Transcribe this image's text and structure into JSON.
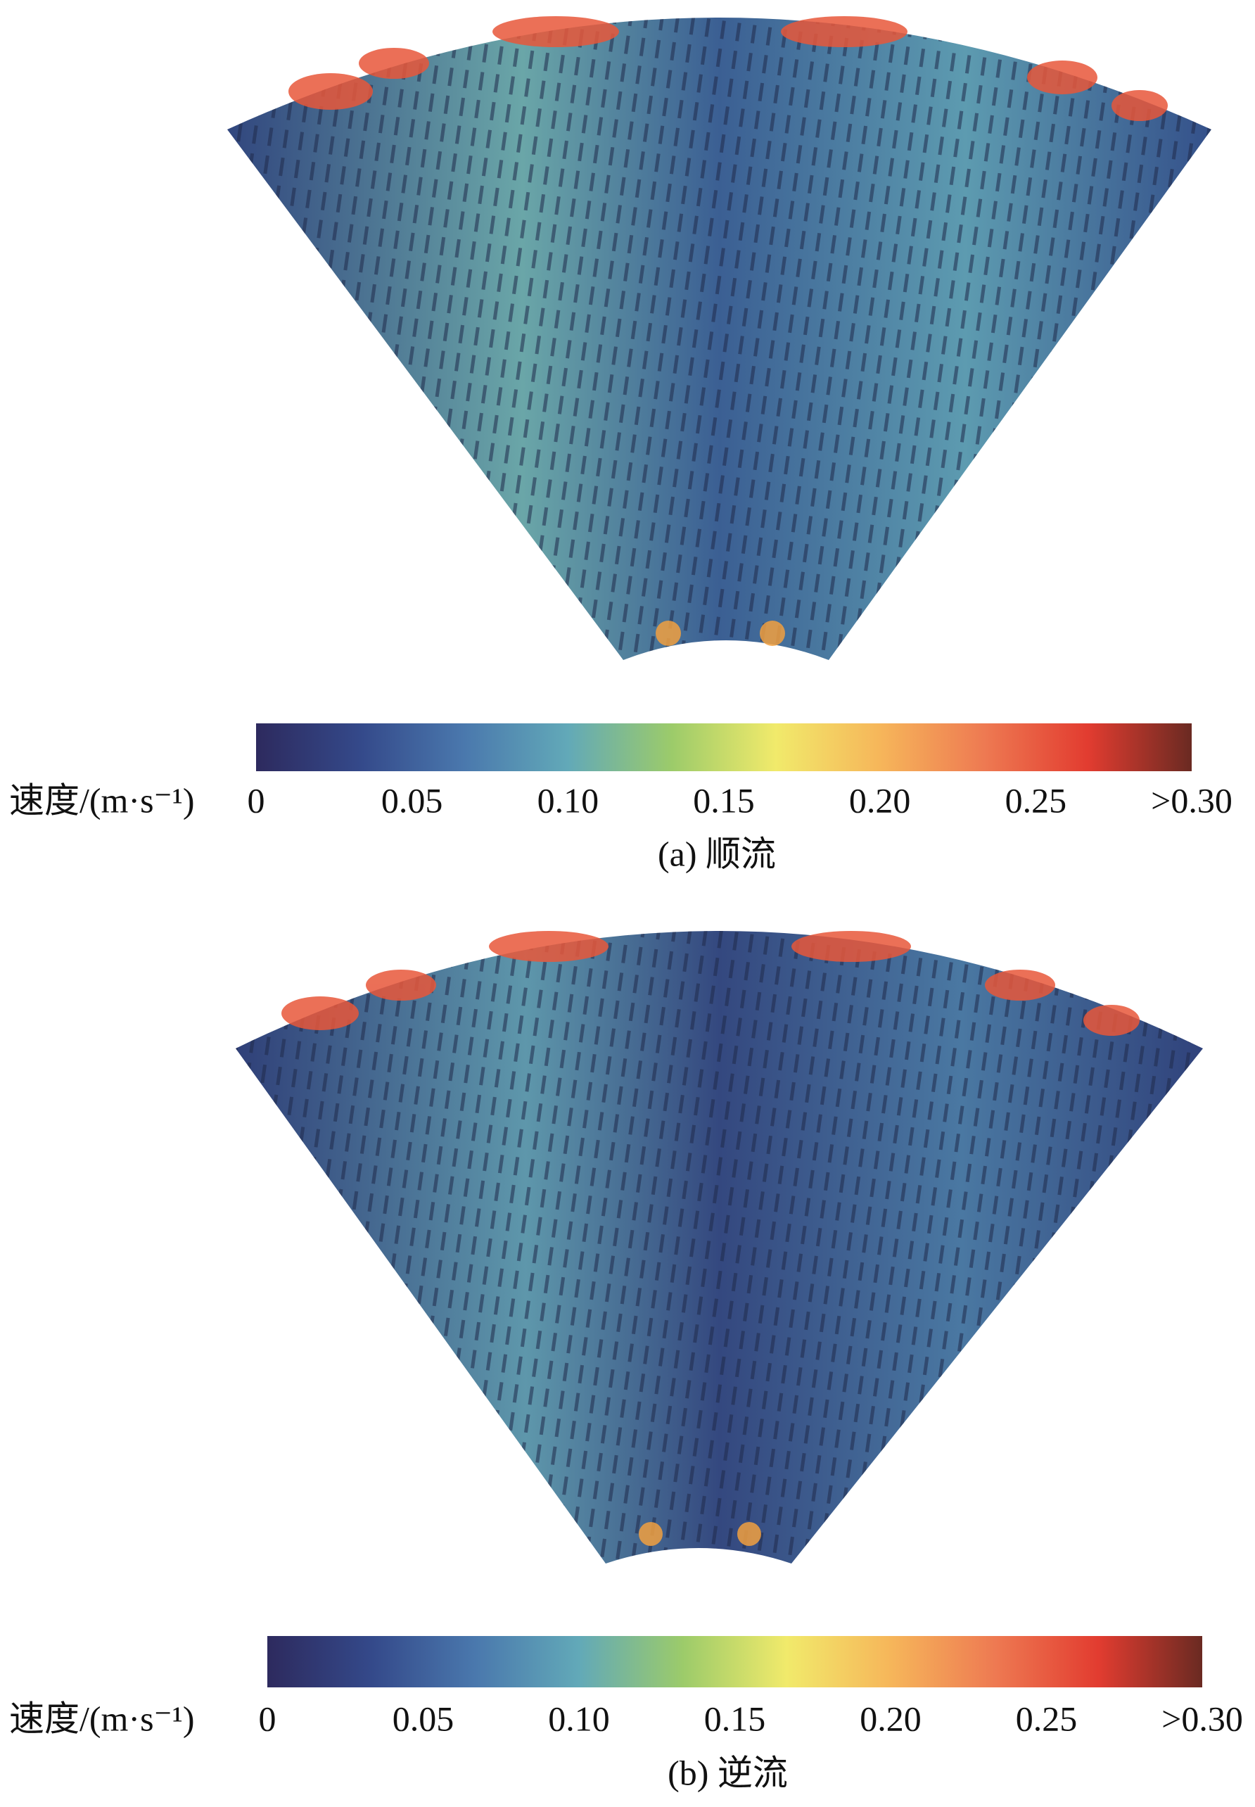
{
  "chart_data": [
    {
      "type": "heatmap",
      "caption": "(a) 顺流",
      "colorbar_label": "速度/(m·s⁻¹)",
      "colors": [
        "#2d2a5e",
        "#34498a",
        "#4a78ad",
        "#62a9b8",
        "#9ccb6a",
        "#f1ea6b",
        "#f6b65a",
        "#ee7a52",
        "#e23c30",
        "#6a2a22"
      ],
      "clim": [
        0,
        0.3
      ],
      "cticks": [
        0,
        0.05,
        {
          "value": 0.1,
          "label": "0.10"
        },
        0.15,
        {
          "value": 0.2,
          "label": "0.20"
        },
        0.25,
        {
          "value": 0.3,
          "label": ">0.30"
        }
      ]
    },
    {
      "type": "heatmap",
      "caption": "(b) 逆流",
      "colorbar_label": "速度/(m·s⁻¹)",
      "colors": [
        "#2d2a5e",
        "#34498a",
        "#4a78ad",
        "#62a9b8",
        "#9ccb6a",
        "#f1ea6b",
        "#f6b65a",
        "#ee7a52",
        "#e23c30",
        "#6a2a22"
      ],
      "clim": [
        0,
        0.3
      ],
      "cticks": [
        0,
        0.05,
        {
          "value": 0.1,
          "label": "0.10"
        },
        0.15,
        {
          "value": 0.2,
          "label": "0.20"
        },
        0.25,
        {
          "value": 0.3,
          "label": ">0.30"
        }
      ]
    }
  ]
}
